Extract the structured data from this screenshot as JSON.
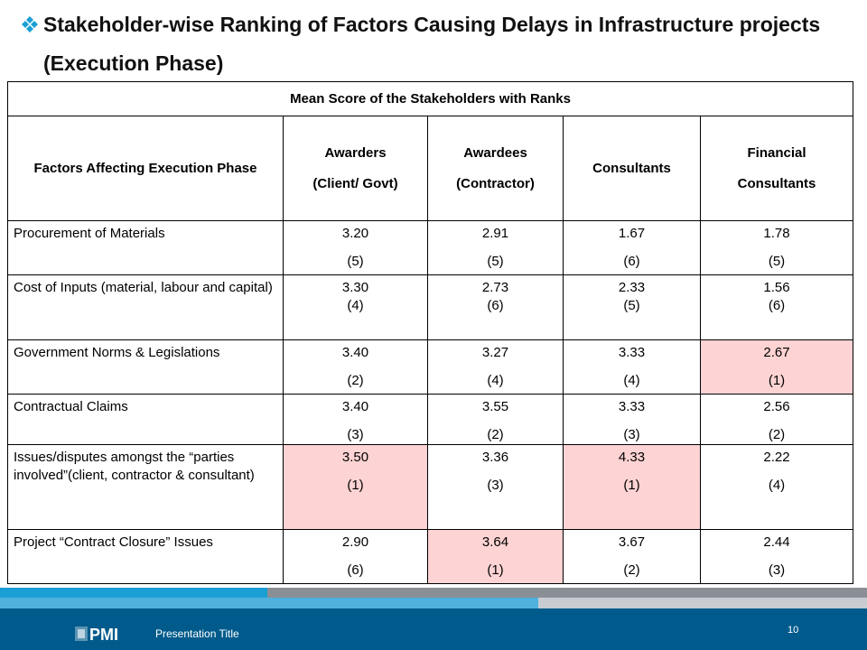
{
  "title": "Stakeholder-wise Ranking of Factors Causing Delays in Infrastructure projects (Execution Phase)",
  "table": {
    "caption": "Mean Score of the Stakeholders with Ranks",
    "headers": {
      "factor": "Factors Affecting Execution Phase",
      "awarders": "Awarders (Client/ Govt)",
      "awardees": "Awardees (Contractor)",
      "consultants": "Consultants",
      "financial": "Financial Consultants"
    },
    "rows": [
      {
        "factor": "Procurement of Materials",
        "awarders": {
          "score": "3.20",
          "rank": "(5)"
        },
        "awardees": {
          "score": "2.91",
          "rank": "(5)"
        },
        "consultants": {
          "score": "1.67",
          "rank": "(6)"
        },
        "financial": {
          "score": "1.78",
          "rank": "(5)"
        }
      },
      {
        "factor": "Cost of Inputs (material, labour and capital)",
        "awarders": {
          "score": "3.30",
          "rank": "(4)"
        },
        "awardees": {
          "score": "2.73",
          "rank": "(6)"
        },
        "consultants": {
          "score": "2.33",
          "rank": "(5)"
        },
        "financial": {
          "score": "1.56",
          "rank": "(6)"
        }
      },
      {
        "factor": "Government Norms & Legislations",
        "awarders": {
          "score": "3.40",
          "rank": "(2)"
        },
        "awardees": {
          "score": "3.27",
          "rank": "(4)"
        },
        "consultants": {
          "score": "3.33",
          "rank": "(4)"
        },
        "financial": {
          "score": "2.67",
          "rank": "(1)"
        }
      },
      {
        "factor": "Contractual Claims",
        "awarders": {
          "score": "3.40",
          "rank": "(3)"
        },
        "awardees": {
          "score": "3.55",
          "rank": "(2)"
        },
        "consultants": {
          "score": "3.33",
          "rank": "(3)"
        },
        "financial": {
          "score": "2.56",
          "rank": "(2)"
        }
      },
      {
        "factor": "Issues/disputes amongst the “parties involved”(client, contractor & consultant)",
        "awarders": {
          "score": "3.50",
          "rank": "(1)"
        },
        "awardees": {
          "score": "3.36",
          "rank": "(3)"
        },
        "consultants": {
          "score": "4.33",
          "rank": "(1)"
        },
        "financial": {
          "score": "2.22",
          "rank": "(4)"
        }
      },
      {
        "factor": "Project “Contract Closure” Issues",
        "awarders": {
          "score": "2.90",
          "rank": "(6)"
        },
        "awardees": {
          "score": "3.64",
          "rank": "(1)"
        },
        "consultants": {
          "score": "3.67",
          "rank": "(2)"
        },
        "financial": {
          "score": "2.44",
          "rank": "(3)"
        }
      }
    ]
  },
  "footer": {
    "logo_text": "PMI",
    "presentation_title": "Presentation Title",
    "page_number": "10"
  },
  "colors": {
    "highlight": "#fdd3d3",
    "footer_bg": "#005b8c",
    "accent_blue": "#1a9fd4",
    "bullet": "#1a9fd4"
  },
  "icons": {
    "bullet": "four-diamond-bullet-icon",
    "logo": "pmi-logo-icon"
  }
}
